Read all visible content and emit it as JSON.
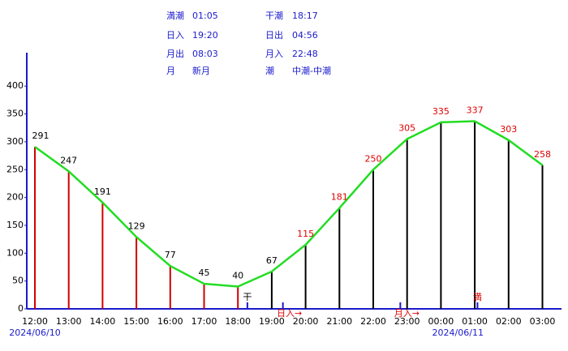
{
  "info": {
    "rows": [
      [
        [
          "満潮",
          "01:05"
        ],
        [
          "干潮",
          "18:17"
        ]
      ],
      [
        [
          "日入",
          "19:20"
        ],
        [
          "日出",
          "04:56"
        ]
      ],
      [
        [
          "月出",
          "08:03"
        ],
        [
          "月入",
          "22:48"
        ]
      ],
      [
        [
          "月",
          "新月"
        ],
        [
          "潮",
          "中潮-中潮"
        ]
      ]
    ]
  },
  "chart_data": {
    "type": "tide",
    "categories": [
      "12:00",
      "13:00",
      "14:00",
      "15:00",
      "16:00",
      "17:00",
      "18:00",
      "19:00",
      "20:00",
      "21:00",
      "22:00",
      "23:00",
      "00:00",
      "01:00",
      "02:00",
      "03:00"
    ],
    "values": [
      291,
      247,
      191,
      129,
      77,
      45,
      40,
      67,
      115,
      181,
      250,
      305,
      335,
      337,
      303,
      258
    ],
    "bar_colors": [
      "#d00000",
      "#d00000",
      "#d00000",
      "#d00000",
      "#d00000",
      "#d00000",
      "#d00000",
      "#000000",
      "#000000",
      "#000000",
      "#000000",
      "#000000",
      "#000000",
      "#000000",
      "#000000",
      "#000000"
    ],
    "label_colors": [
      "#000000",
      "#000000",
      "#000000",
      "#000000",
      "#000000",
      "#000000",
      "#000000",
      "#000000",
      "#e00000",
      "#e00000",
      "#e00000",
      "#e00000",
      "#e00000",
      "#e00000",
      "#e00000",
      "#e00000"
    ],
    "line_color": "#22dd22",
    "ylim": [
      0,
      460
    ],
    "yticks": [
      0,
      50,
      100,
      150,
      200,
      250,
      300,
      350,
      400
    ],
    "dates": [
      {
        "text": "2024/06/10",
        "index": 0
      },
      {
        "text": "2024/06/11",
        "index": 12.5
      }
    ],
    "annotations": [
      {
        "text": "干",
        "x": 6.28,
        "color": "#000000",
        "above": true
      },
      {
        "text": "日入→",
        "x": 7.33,
        "color": "#e00000",
        "above": false
      },
      {
        "text": "月入→",
        "x": 10.8,
        "color": "#e00000",
        "above": false
      },
      {
        "text": "満",
        "x": 13.08,
        "color": "#e00000",
        "above": true
      }
    ]
  }
}
